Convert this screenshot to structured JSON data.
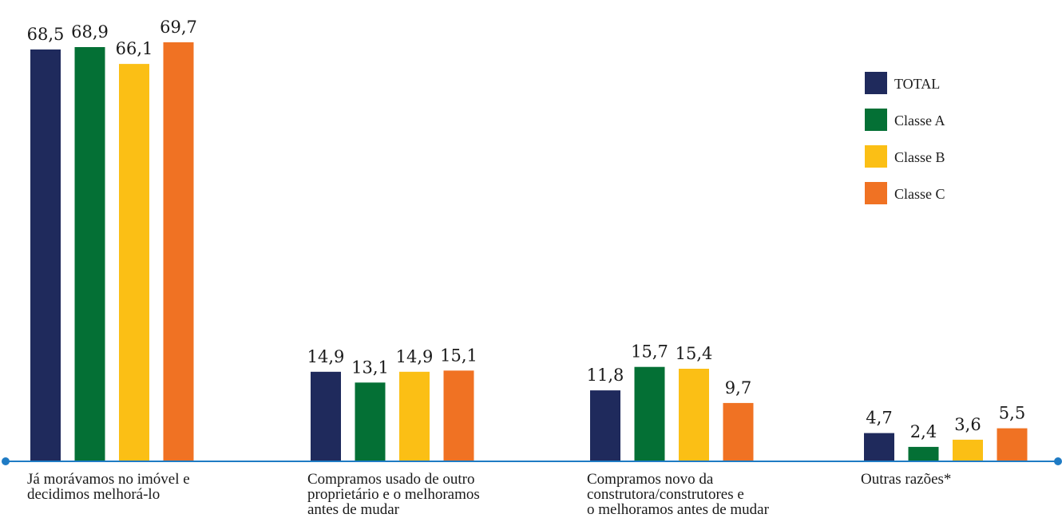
{
  "chart_data": {
    "type": "bar",
    "categories": [
      [
        "Já morávamos no imóvel e",
        "decidimos melhorá-lo"
      ],
      [
        "Compramos usado de outro",
        "proprietário e o melhoramos",
        "antes de mudar"
      ],
      [
        "Compramos novo da",
        "construtora/construtores e",
        "o melhoramos antes de mudar"
      ],
      [
        "Outras razões*"
      ]
    ],
    "series": [
      {
        "name": "TOTAL",
        "color": "#1f2a5c",
        "values": [
          68.5,
          14.9,
          11.8,
          4.7
        ],
        "labels": [
          "68,5",
          "14,9",
          "11,8",
          "4,7"
        ]
      },
      {
        "name": "Classe A",
        "color": "#047035",
        "values": [
          68.9,
          13.1,
          15.7,
          2.4
        ],
        "labels": [
          "68,9",
          "13,1",
          "15,7",
          "2,4"
        ]
      },
      {
        "name": "Classe B",
        "color": "#fbbf15",
        "values": [
          66.1,
          14.9,
          15.4,
          3.6
        ],
        "labels": [
          "66,1",
          "14,9",
          "15,4",
          "3,6"
        ]
      },
      {
        "name": "Classe C",
        "color": "#f07223",
        "values": [
          69.7,
          15.1,
          9.7,
          5.5
        ],
        "labels": [
          "69,7",
          "15,1",
          "9,7",
          "5,5"
        ]
      }
    ],
    "ylim": [
      0,
      70
    ],
    "grid": false,
    "legend_position": "top-right",
    "axis_color": "#1f7bc4"
  }
}
